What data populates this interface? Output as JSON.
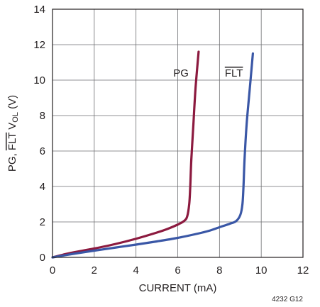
{
  "chart_data": {
    "type": "line",
    "xlabel": "CURRENT (mA)",
    "ylabel": {
      "pre": "PG, ",
      "overline": "FLT",
      "mid": " V",
      "sub": "OL",
      "post": " (V)"
    },
    "xlim": [
      0,
      12
    ],
    "ylim": [
      0,
      14
    ],
    "xticks": [
      0,
      2,
      4,
      6,
      8,
      10,
      12
    ],
    "yticks": [
      0,
      2,
      4,
      6,
      8,
      10,
      12,
      14
    ],
    "grid": true,
    "series": [
      {
        "name": "PG",
        "overline": false,
        "color": "#8c1a3f",
        "x": [
          0,
          0.5,
          1,
          2,
          3,
          4,
          5,
          5.5,
          6,
          6.3,
          6.45,
          6.55,
          6.6,
          6.65,
          6.75,
          6.85,
          7.0
        ],
        "y": [
          0,
          0.15,
          0.28,
          0.5,
          0.75,
          1.05,
          1.4,
          1.6,
          1.85,
          2.05,
          2.3,
          3.0,
          4.0,
          5.5,
          7.5,
          9.5,
          11.6
        ]
      },
      {
        "name": "FLT",
        "overline": true,
        "color": "#3a57a6",
        "x": [
          0,
          1,
          2,
          3,
          4,
          5,
          6,
          7,
          7.5,
          8,
          8.5,
          8.8,
          9.0,
          9.1,
          9.15,
          9.2,
          9.3,
          9.45,
          9.6
        ],
        "y": [
          0,
          0.2,
          0.38,
          0.55,
          0.72,
          0.9,
          1.1,
          1.35,
          1.5,
          1.7,
          1.9,
          2.05,
          2.4,
          3.0,
          4.0,
          5.5,
          7.5,
          9.5,
          11.5
        ]
      }
    ]
  },
  "figure_id": "4232 G12"
}
